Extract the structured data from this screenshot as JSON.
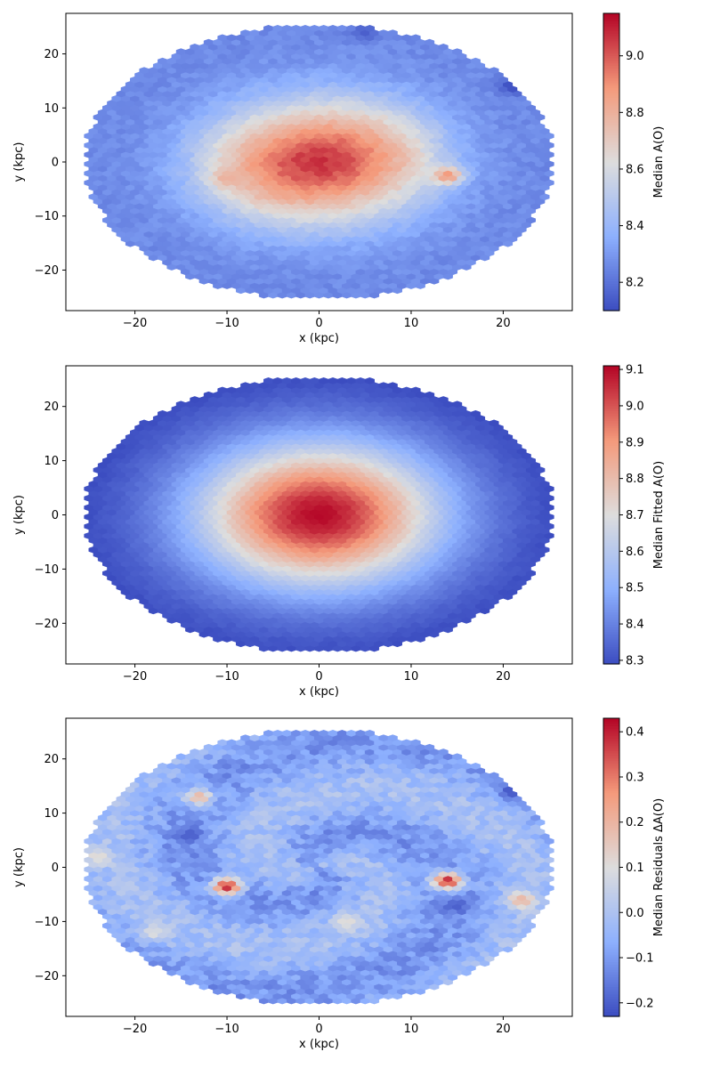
{
  "chart_data": [
    {
      "type": "heatmap",
      "subtype": "hexbin",
      "xlabel": "x (kpc)",
      "ylabel": "y (kpc)",
      "xlim": [
        -27.5,
        27.5
      ],
      "ylim": [
        -27.5,
        27.5
      ],
      "xticks": [
        -20,
        -10,
        0,
        10,
        20
      ],
      "yticks": [
        -20,
        -10,
        0,
        10,
        20
      ],
      "colorbar": {
        "label": "Median A(O)",
        "range": [
          8.1,
          9.15
        ],
        "ticks": [
          8.2,
          8.4,
          8.6,
          8.8,
          9.0
        ],
        "colormap": "coolwarm"
      },
      "data_extent": {
        "x_radius_kpc": 25.5,
        "y_radius_kpc": 25.5
      },
      "field": {
        "center_value": 9.1,
        "outer_value": 8.3,
        "features": [
          {
            "x": 14,
            "y": -2.5,
            "value": 8.9
          },
          {
            "x": -10,
            "y": -3,
            "value": 8.8
          },
          {
            "x": 21,
            "y": 14,
            "value": 8.1
          },
          {
            "x": 5,
            "y": 24,
            "value": 8.15
          }
        ]
      }
    },
    {
      "type": "heatmap",
      "subtype": "hexbin",
      "xlabel": "x (kpc)",
      "ylabel": "y (kpc)",
      "xlim": [
        -27.5,
        27.5
      ],
      "ylim": [
        -27.5,
        27.5
      ],
      "xticks": [
        -20,
        -10,
        0,
        10,
        20
      ],
      "yticks": [
        -20,
        -10,
        0,
        10,
        20
      ],
      "colorbar": {
        "label": "Median Fitted A(O)",
        "range": [
          8.29,
          9.11
        ],
        "ticks": [
          8.3,
          8.4,
          8.5,
          8.6,
          8.7,
          8.8,
          8.9,
          9.0,
          9.1
        ],
        "colormap": "coolwarm"
      },
      "data_extent": {
        "x_radius_kpc": 25.5,
        "y_radius_kpc": 25.5
      },
      "field": {
        "center_value": 9.1,
        "outer_value": 8.3,
        "features": []
      }
    },
    {
      "type": "heatmap",
      "subtype": "hexbin",
      "xlabel": "x (kpc)",
      "ylabel": "y (kpc)",
      "xlim": [
        -27.5,
        27.5
      ],
      "ylim": [
        -27.5,
        27.5
      ],
      "xticks": [
        -20,
        -10,
        0,
        10,
        20
      ],
      "yticks": [
        -20,
        -10,
        0,
        10,
        20
      ],
      "colorbar": {
        "label": "Median Residuals ΔA(O)",
        "range": [
          -0.23,
          0.43
        ],
        "ticks": [
          -0.2,
          -0.1,
          0.0,
          0.1,
          0.2,
          0.3,
          0.4
        ],
        "colormap": "coolwarm"
      },
      "data_extent": {
        "x_radius_kpc": 25.5,
        "y_radius_kpc": 25.5
      },
      "field": {
        "center_value": -0.05,
        "outer_value": -0.05,
        "features": [
          {
            "x": -13,
            "y": 13,
            "value": 0.2
          },
          {
            "x": -24,
            "y": 2,
            "value": 0.12
          },
          {
            "x": -18,
            "y": -12,
            "value": 0.1
          },
          {
            "x": 14,
            "y": -2.5,
            "value": 0.4
          },
          {
            "x": 15,
            "y": -7,
            "value": -0.2
          },
          {
            "x": -10,
            "y": -3.5,
            "value": 0.4
          },
          {
            "x": -14,
            "y": 6,
            "value": -0.2
          },
          {
            "x": 22,
            "y": -6,
            "value": 0.2
          },
          {
            "x": 21,
            "y": 14,
            "value": -0.22
          },
          {
            "x": 3,
            "y": -10,
            "value": 0.12
          }
        ]
      }
    }
  ]
}
